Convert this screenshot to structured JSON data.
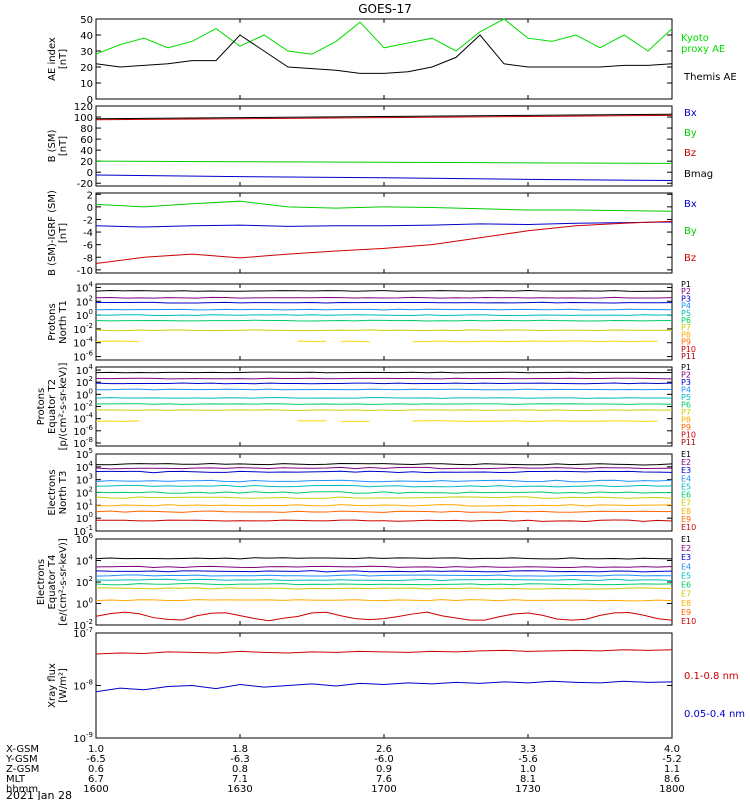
{
  "title": "GOES-17",
  "date_label": "2021 Jan 28",
  "time_axis": {
    "row_labels": [
      "X-GSM",
      "Y-GSM",
      "Z-GSM",
      "MLT",
      "hhmm"
    ],
    "columns": [
      [
        "1.0",
        "-6.5",
        "0.6",
        "6.7",
        "1600"
      ],
      [
        "1.8",
        "-6.3",
        "0.8",
        "7.1",
        "1630"
      ],
      [
        "2.6",
        "-6.0",
        "0.9",
        "7.6",
        "1700"
      ],
      [
        "3.3",
        "-5.6",
        "1.0",
        "8.1",
        "1730"
      ],
      [
        "4.0",
        "-5.2",
        "1.1",
        "8.6",
        "1800"
      ]
    ]
  },
  "chart_data": [
    {
      "type": "line",
      "id": "ae",
      "ylabel": [
        "AE index",
        "[nT]"
      ],
      "yticks": [
        "50",
        "40",
        "30",
        "20",
        "10",
        "0"
      ],
      "ylim": [
        0,
        50
      ],
      "x": [
        1600,
        1605,
        1610,
        1615,
        1620,
        1625,
        1630,
        1635,
        1640,
        1645,
        1650,
        1655,
        1700,
        1705,
        1710,
        1715,
        1720,
        1725,
        1730,
        1735,
        1740,
        1745,
        1750,
        1755,
        1800
      ],
      "series": [
        {
          "name": "Kyoto proxy AE",
          "label": [
            "Kyoto",
            "proxy AE"
          ],
          "color": "#00dd00",
          "values": [
            28,
            34,
            38,
            32,
            36,
            44,
            33,
            40,
            30,
            28,
            36,
            48,
            32,
            35,
            38,
            30,
            42,
            50,
            38,
            36,
            40,
            32,
            40,
            30,
            44
          ]
        },
        {
          "name": "Themis AE",
          "label": [
            "Themis AE"
          ],
          "color": "#000000",
          "values": [
            22,
            20,
            21,
            22,
            24,
            24,
            40,
            30,
            20,
            19,
            18,
            16,
            16,
            17,
            20,
            26,
            40,
            22,
            20,
            20,
            20,
            20,
            21,
            21,
            22
          ]
        }
      ]
    },
    {
      "type": "line",
      "id": "bsm",
      "ylabel": [
        "B (SM)",
        "[nT]"
      ],
      "yticks": [
        "120",
        "100",
        "80",
        "60",
        "40",
        "20",
        "0",
        "-20"
      ],
      "ylim": [
        -25,
        120
      ],
      "x": [
        1600,
        1630,
        1700,
        1730,
        1800
      ],
      "series": [
        {
          "name": "Bx",
          "color": "#0000cc",
          "values": [
            -5,
            -8,
            -10,
            -13,
            -15
          ]
        },
        {
          "name": "By",
          "color": "#00cc00",
          "values": [
            20,
            19,
            18,
            17,
            16
          ]
        },
        {
          "name": "Bz",
          "color": "#cc0000",
          "values": [
            95,
            97,
            99,
            101,
            103
          ]
        },
        {
          "name": "Bmag",
          "color": "#000000",
          "values": [
            97,
            99,
            101,
            103,
            105
          ]
        }
      ]
    },
    {
      "type": "line",
      "id": "bigrf",
      "ylabel": [
        "B (SM)-IGRF (SM)",
        "[nT]"
      ],
      "yticks": [
        "2",
        "0",
        "-2",
        "-4",
        "-6",
        "-8",
        "-10"
      ],
      "ylim": [
        -10.5,
        2.2
      ],
      "x": [
        1600,
        1610,
        1620,
        1630,
        1640,
        1650,
        1700,
        1710,
        1720,
        1730,
        1740,
        1750,
        1800
      ],
      "series": [
        {
          "name": "Bx",
          "color": "#0000cc",
          "values": [
            -3.0,
            -3.2,
            -3.0,
            -2.9,
            -3.1,
            -3.0,
            -3.0,
            -2.9,
            -2.7,
            -2.8,
            -2.6,
            -2.5,
            -2.4
          ]
        },
        {
          "name": "By",
          "color": "#00cc00",
          "values": [
            0.4,
            0.0,
            0.5,
            0.9,
            0.0,
            -0.2,
            0.0,
            -0.1,
            -0.3,
            -0.5,
            -0.5,
            -0.6,
            -0.7
          ]
        },
        {
          "name": "Bz",
          "color": "#cc0000",
          "values": [
            -9.0,
            -8.0,
            -7.5,
            -8.1,
            -7.5,
            -7.0,
            -6.6,
            -6.0,
            -4.9,
            -3.8,
            -3.0,
            -2.6,
            -2.3
          ]
        }
      ]
    },
    {
      "type": "line",
      "id": "protons_north",
      "scale": "log",
      "ylabel": [
        "Protons",
        "North T1"
      ],
      "yticks_exp": [
        4,
        2,
        0,
        -2,
        -4,
        -6
      ],
      "ylim_exp": [
        -6.5,
        4.5
      ],
      "labels": [
        {
          "name": "P1",
          "color": "#000000"
        },
        {
          "name": "P2",
          "color": "#800080"
        },
        {
          "name": "P3",
          "color": "#0000cc"
        },
        {
          "name": "P4",
          "color": "#1e90ff"
        },
        {
          "name": "P5",
          "color": "#00bbbb"
        },
        {
          "name": "P6",
          "color": "#00cc66"
        },
        {
          "name": "P7",
          "color": "#cccc00"
        },
        {
          "name": "P8",
          "color": "#ffaa00"
        },
        {
          "name": "P9",
          "color": "#ff6600"
        },
        {
          "name": "P10",
          "color": "#cc0000"
        },
        {
          "name": "P11",
          "color": "#aa0000"
        }
      ],
      "series": [
        {
          "color": "#000000",
          "value_exp": 3.5
        },
        {
          "color": "#800080",
          "value_exp": 2.5
        },
        {
          "color": "#0000cc",
          "value_exp": 1.8
        },
        {
          "color": "#1e90ff",
          "value_exp": 0.8
        },
        {
          "color": "#00bbbb",
          "value_exp": 0.0
        },
        {
          "color": "#00cc66",
          "value_exp": -0.8
        },
        {
          "color": "#cccc00",
          "value_exp": -2.2
        },
        {
          "color": "#ffd700",
          "value_exp": -3.8,
          "gaps": true
        }
      ]
    },
    {
      "type": "line",
      "id": "protons_equator",
      "scale": "log",
      "ylabel": [
        "Protons",
        "Equator T2",
        "[p/(cm²-s-sr-keV)]"
      ],
      "yticks_exp": [
        4,
        2,
        0,
        -2,
        -4,
        -6,
        -8
      ],
      "ylim_exp": [
        -8.5,
        4.5
      ],
      "labels": [
        {
          "name": "P1",
          "color": "#000000"
        },
        {
          "name": "P2",
          "color": "#800080"
        },
        {
          "name": "P3",
          "color": "#0000cc"
        },
        {
          "name": "P4",
          "color": "#1e90ff"
        },
        {
          "name": "P5",
          "color": "#00bbbb"
        },
        {
          "name": "P6",
          "color": "#00cc66"
        },
        {
          "name": "P7",
          "color": "#cccc00"
        },
        {
          "name": "P8",
          "color": "#ffaa00"
        },
        {
          "name": "P9",
          "color": "#ff6600"
        },
        {
          "name": "P10",
          "color": "#cc0000"
        },
        {
          "name": "P11",
          "color": "#aa0000"
        }
      ],
      "series": [
        {
          "color": "#000000",
          "value_exp": 3.6
        },
        {
          "color": "#800080",
          "value_exp": 2.6
        },
        {
          "color": "#0000cc",
          "value_exp": 1.8
        },
        {
          "color": "#1e90ff",
          "value_exp": 0.8
        },
        {
          "color": "#00bbbb",
          "value_exp": -0.6
        },
        {
          "color": "#00cc66",
          "value_exp": -1.6
        },
        {
          "color": "#cccc00",
          "value_exp": -2.6
        },
        {
          "color": "#ffd700",
          "value_exp": -4.4,
          "gaps": true
        }
      ]
    },
    {
      "type": "line",
      "id": "electrons_north",
      "scale": "log",
      "ylabel": [
        "Electrons",
        "North T3"
      ],
      "yticks_exp": [
        5,
        4,
        3,
        2,
        1,
        0,
        -1
      ],
      "ylim_exp": [
        -1,
        5
      ],
      "labels": [
        {
          "name": "E1",
          "color": "#000000"
        },
        {
          "name": "E2",
          "color": "#800080"
        },
        {
          "name": "E3",
          "color": "#0000cc"
        },
        {
          "name": "E4",
          "color": "#1e90ff"
        },
        {
          "name": "E5",
          "color": "#00bbbb"
        },
        {
          "name": "E6",
          "color": "#00cc66"
        },
        {
          "name": "E7",
          "color": "#cccc00"
        },
        {
          "name": "E8",
          "color": "#ffaa00"
        },
        {
          "name": "E9",
          "color": "#ff6600"
        },
        {
          "name": "E10",
          "color": "#cc0000"
        }
      ],
      "series": [
        {
          "color": "#000000",
          "value_exp": 4.2
        },
        {
          "color": "#800080",
          "value_exp": 3.9
        },
        {
          "color": "#0000cc",
          "value_exp": 3.6
        },
        {
          "color": "#1e90ff",
          "value_exp": 2.9
        },
        {
          "color": "#00bbbb",
          "value_exp": 2.5
        },
        {
          "color": "#00cc66",
          "value_exp": 2.0
        },
        {
          "color": "#cccc00",
          "value_exp": 1.6
        },
        {
          "color": "#ffaa00",
          "value_exp": 1.0
        },
        {
          "color": "#ff6600",
          "value_exp": 0.5
        },
        {
          "color": "#cc0000",
          "value_exp": -0.2
        }
      ]
    },
    {
      "type": "line",
      "id": "electrons_equator",
      "scale": "log",
      "ylabel": [
        "Electrons",
        "Equator T4",
        "[e/(cm²-s-sr-keV)]"
      ],
      "yticks_exp": [
        6,
        4,
        2,
        0,
        -2
      ],
      "ylim_exp": [
        -2,
        6
      ],
      "labels": [
        {
          "name": "E1",
          "color": "#000000"
        },
        {
          "name": "E2",
          "color": "#800080"
        },
        {
          "name": "E3",
          "color": "#0000cc"
        },
        {
          "name": "E4",
          "color": "#1e90ff"
        },
        {
          "name": "E5",
          "color": "#00bbbb"
        },
        {
          "name": "E6",
          "color": "#00cc66"
        },
        {
          "name": "E7",
          "color": "#cccc00"
        },
        {
          "name": "E8",
          "color": "#ffaa00"
        },
        {
          "name": "E9",
          "color": "#ff6600"
        },
        {
          "name": "E10",
          "color": "#cc0000"
        }
      ],
      "series": [
        {
          "color": "#000000",
          "value_exp": 4.2
        },
        {
          "color": "#800080",
          "value_exp": 3.4
        },
        {
          "color": "#0000cc",
          "value_exp": 3.0
        },
        {
          "color": "#1e90ff",
          "value_exp": 2.6
        },
        {
          "color": "#00bbbb",
          "value_exp": 2.2
        },
        {
          "color": "#00cc66",
          "value_exp": 1.8
        },
        {
          "color": "#cccc00",
          "value_exp": 1.4
        },
        {
          "color": "#ffaa00",
          "value_exp": 0.3
        },
        {
          "color": "#cc0000",
          "value_exp": -1.2,
          "wavy": true
        }
      ]
    },
    {
      "type": "line",
      "id": "xray",
      "scale": "log",
      "ylabel": [
        "Xray flux",
        "[W/m²]"
      ],
      "yticks_exp": [
        -7,
        -8,
        -9
      ],
      "ylim_exp": [
        -9,
        -7
      ],
      "x": [
        1600,
        1605,
        1610,
        1615,
        1620,
        1625,
        1630,
        1635,
        1640,
        1645,
        1650,
        1655,
        1700,
        1705,
        1710,
        1715,
        1720,
        1725,
        1730,
        1735,
        1740,
        1745,
        1750,
        1755,
        1800
      ],
      "series": [
        {
          "name": "0.1-0.8 nm",
          "color": "#cc0000",
          "values_exp": [
            -7.4,
            -7.38,
            -7.39,
            -7.36,
            -7.37,
            -7.38,
            -7.35,
            -7.37,
            -7.38,
            -7.36,
            -7.37,
            -7.35,
            -7.36,
            -7.37,
            -7.35,
            -7.36,
            -7.34,
            -7.33,
            -7.35,
            -7.34,
            -7.33,
            -7.34,
            -7.32,
            -7.33,
            -7.32
          ]
        },
        {
          "name": "0.05-0.4 nm",
          "color": "#0000cc",
          "values_exp": [
            -8.12,
            -8.05,
            -8.08,
            -8.02,
            -8.0,
            -8.06,
            -7.98,
            -8.03,
            -8.0,
            -7.97,
            -8.01,
            -7.96,
            -7.98,
            -7.95,
            -7.97,
            -7.94,
            -7.96,
            -7.93,
            -7.95,
            -7.92,
            -7.94,
            -7.95,
            -7.92,
            -7.94,
            -7.93
          ]
        }
      ]
    }
  ]
}
